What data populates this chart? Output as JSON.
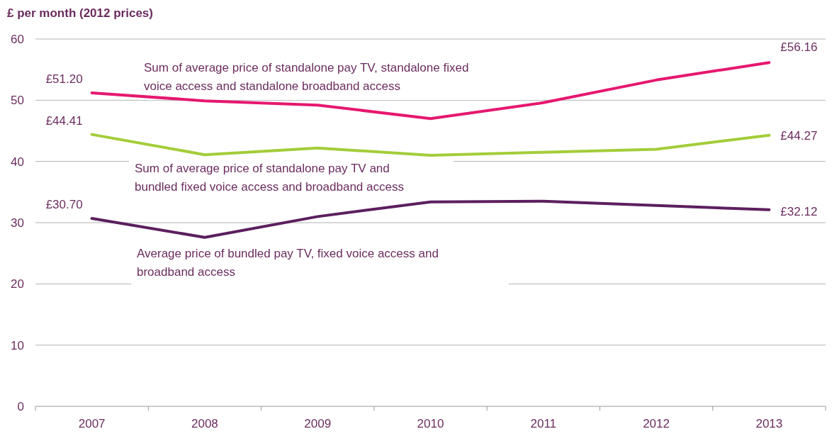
{
  "chart_data": {
    "type": "line",
    "ylabel": "£ per month (2012 prices)",
    "categories": [
      "2007",
      "2008",
      "2009",
      "2010",
      "2011",
      "2012",
      "2013"
    ],
    "series": [
      {
        "name": "Sum of average price of standalone pay TV, standalone fixed voice access and standalone broadband access",
        "color": "#e6186f",
        "values": [
          51.2,
          49.9,
          49.2,
          47.0,
          49.6,
          53.3,
          56.16
        ],
        "value_labels": [
          "£51.20",
          null,
          null,
          null,
          null,
          null,
          "£56.16"
        ]
      },
      {
        "name": "Sum of average price of standalone pay TV and bundled fixed voice access and broadband access",
        "color": "#a3cd39",
        "values": [
          44.41,
          41.1,
          42.2,
          41.0,
          41.5,
          42.0,
          44.27
        ],
        "value_labels": [
          "£44.41",
          null,
          null,
          null,
          null,
          null,
          "£44.27"
        ]
      },
      {
        "name": "Average price of bundled pay TV, fixed voice access and broadband access",
        "color": "#5c1f5e",
        "values": [
          30.7,
          27.6,
          31.0,
          33.4,
          33.5,
          32.8,
          32.12
        ],
        "value_labels": [
          "£30.70",
          null,
          null,
          null,
          null,
          null,
          "£32.12"
        ]
      }
    ],
    "ylim": [
      0,
      60
    ],
    "yticks": [
      0,
      10,
      20,
      30,
      40,
      50,
      60
    ],
    "grid": "y"
  }
}
